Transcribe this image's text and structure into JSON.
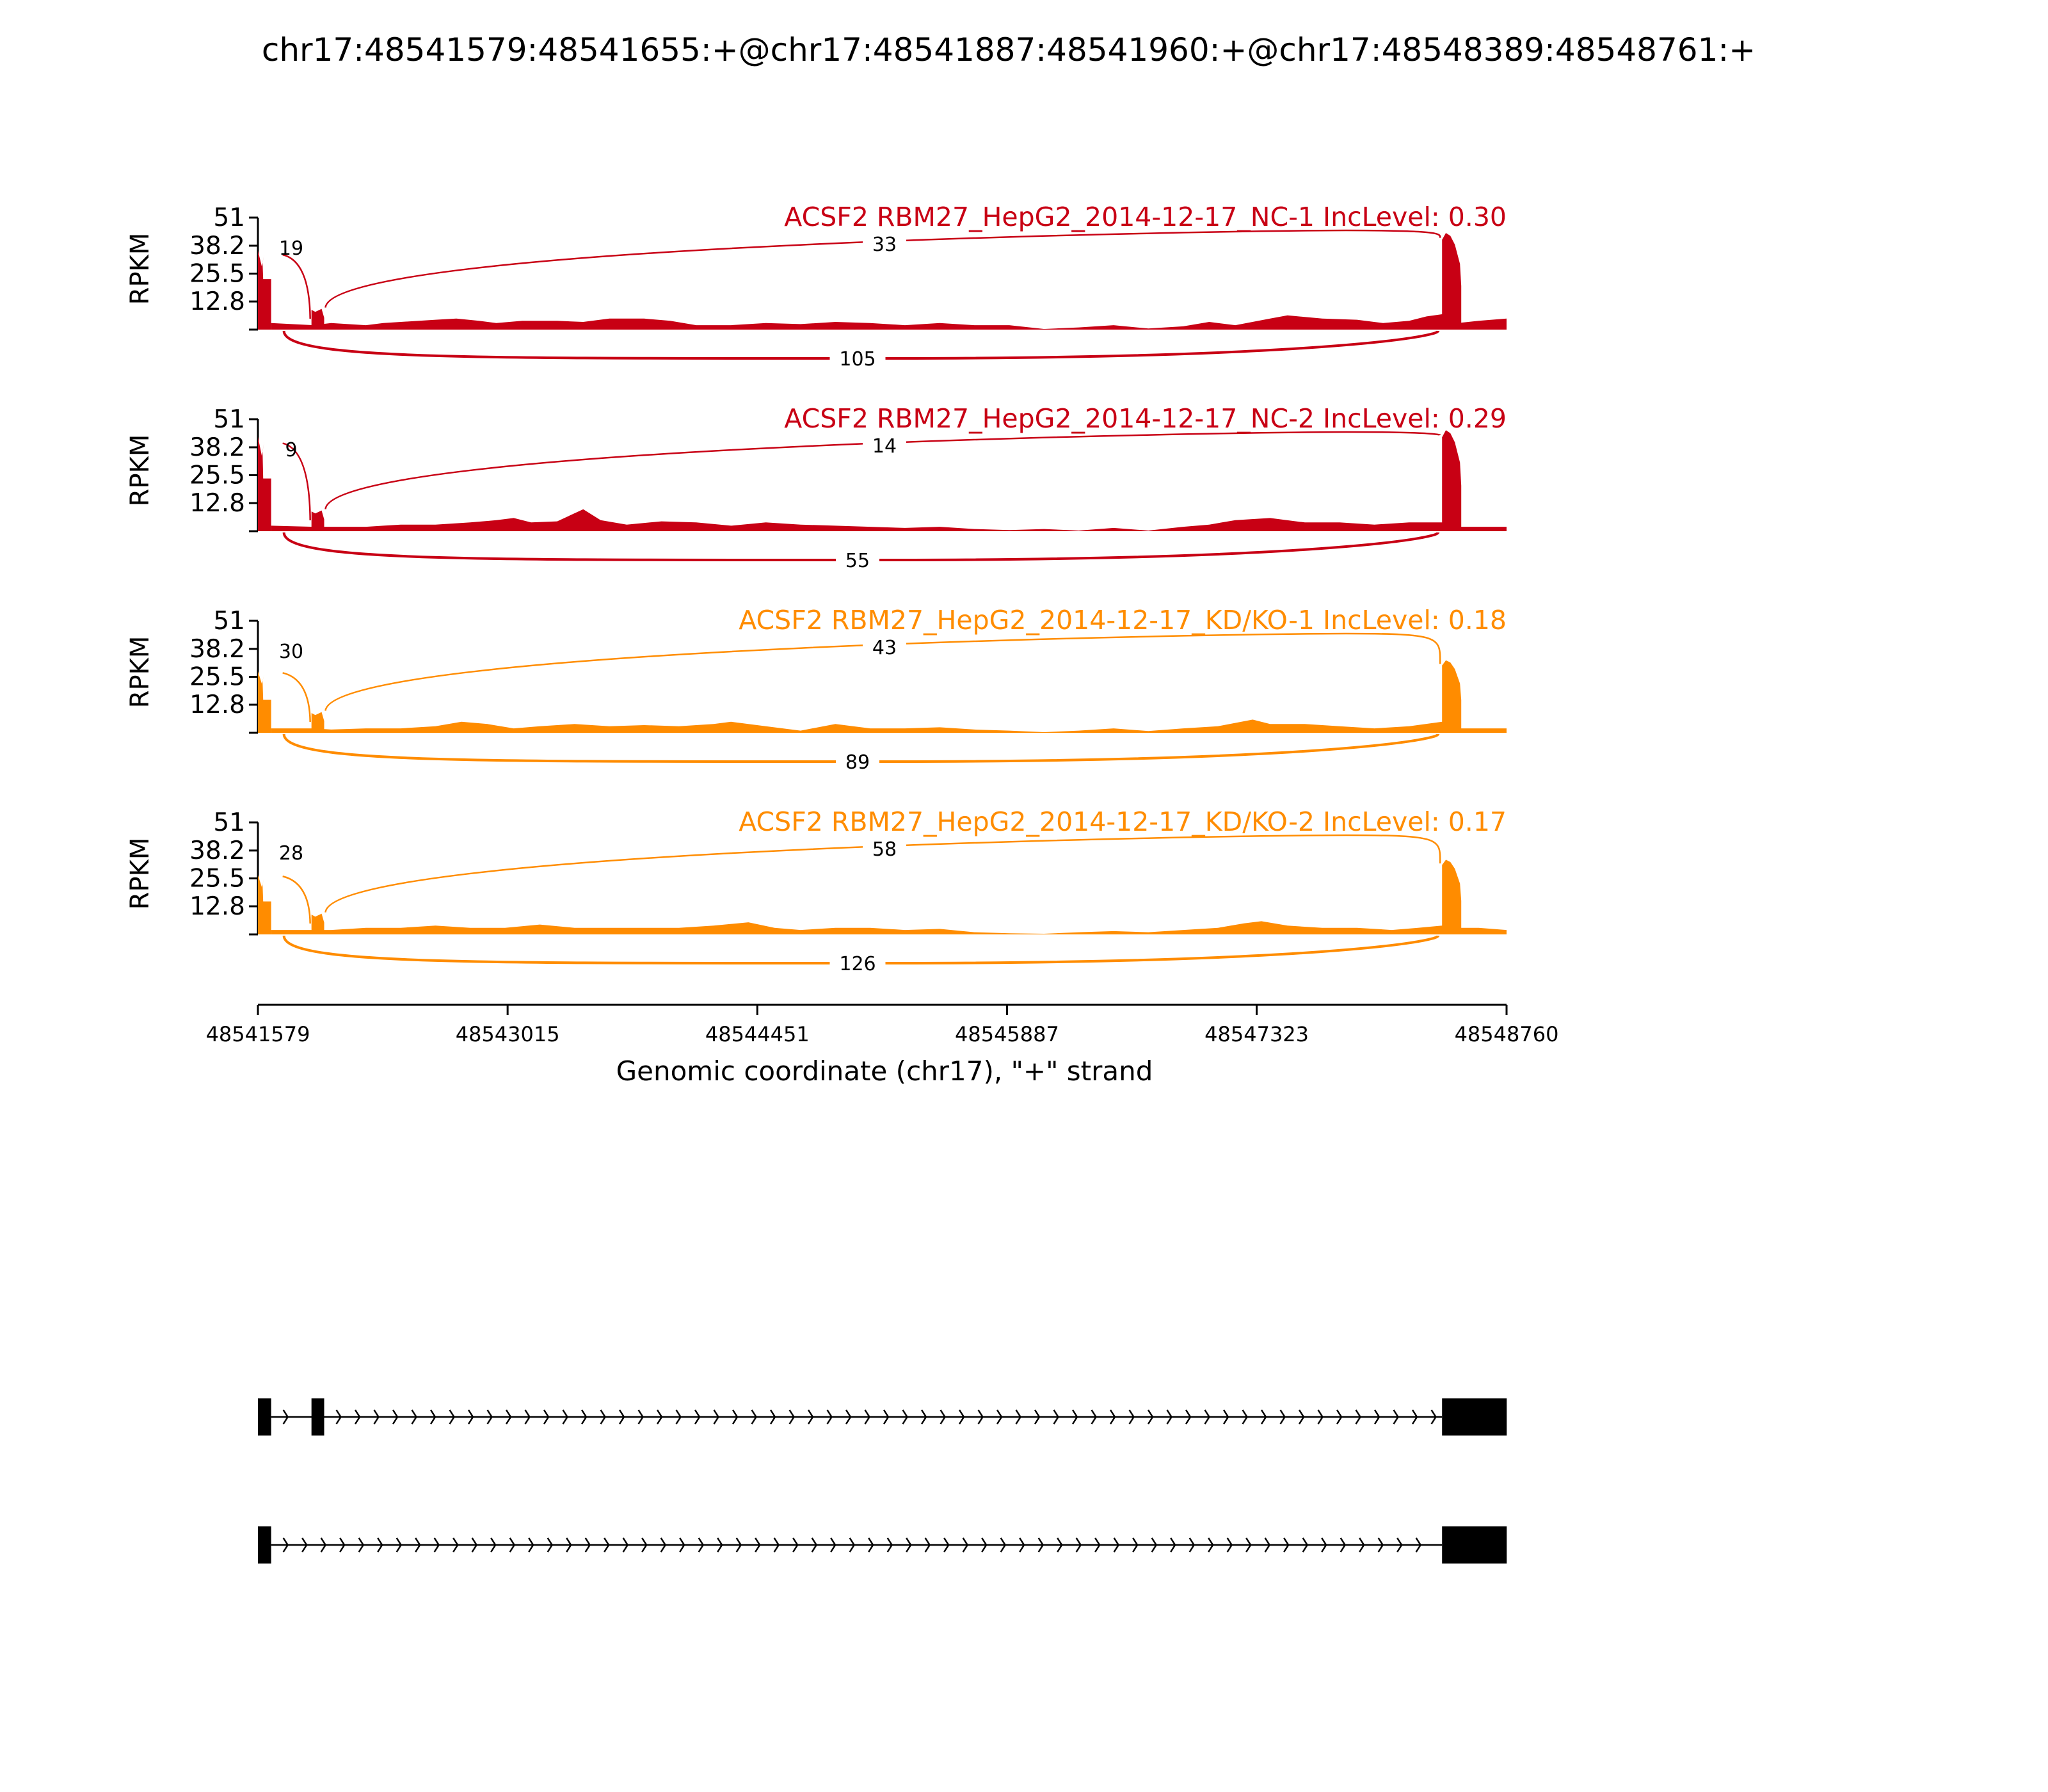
{
  "figure": {
    "title": "chr17:48541579:48541655:+@chr17:48541887:48541960:+@chr17:48548389:48548761:+",
    "xlabel": "Genomic coordinate (chr17), \"+\" strand",
    "ylabel": "RPKM"
  },
  "chart_data": {
    "type": "area",
    "title": "chr17:48541579:48541655:+@chr17:48541887:48541960:+@chr17:48548389:48548761:+",
    "xlabel": "Genomic coordinate (chr17), \"+\" strand",
    "ylabel": "RPKM",
    "xlim": [
      48541579,
      48548760
    ],
    "x_ticks": [
      "48541579",
      "48543015",
      "48544451",
      "48545887",
      "48547323",
      "48548760"
    ],
    "ylim": [
      0,
      51
    ],
    "y_ticks": [
      "12.8",
      "25.5",
      "38.2",
      "51"
    ],
    "exons": [
      {
        "start": 48541579,
        "end": 48541655
      },
      {
        "start": 48541887,
        "end": 48541960
      },
      {
        "start": 48548389,
        "end": 48548761
      }
    ],
    "series": [
      {
        "name": "ACSF2 RBM27_HepG2_2014-12-17_NC-1 IncLevel: 0.30",
        "color": "#c80014",
        "peaks": {
          "exon1": 36,
          "exon1_tail": 23,
          "exon2": 9,
          "exon3": 44
        },
        "background": [
          [
            48541655,
            3
          ],
          [
            48541900,
            2
          ],
          [
            48542000,
            3
          ],
          [
            48542200,
            2
          ],
          [
            48542300,
            3
          ],
          [
            48542400,
            3.5
          ],
          [
            48542600,
            4.5
          ],
          [
            48542720,
            5
          ],
          [
            48542850,
            4
          ],
          [
            48542950,
            3
          ],
          [
            48543100,
            4
          ],
          [
            48543300,
            4
          ],
          [
            48543450,
            3.5
          ],
          [
            48543600,
            5
          ],
          [
            48543800,
            5
          ],
          [
            48543950,
            4
          ],
          [
            48544100,
            2
          ],
          [
            48544300,
            2
          ],
          [
            48544500,
            3
          ],
          [
            48544700,
            2.5
          ],
          [
            48544900,
            3.5
          ],
          [
            48545100,
            3
          ],
          [
            48545300,
            2
          ],
          [
            48545500,
            3
          ],
          [
            48545700,
            2
          ],
          [
            48545900,
            2
          ],
          [
            48546100,
            0.3
          ],
          [
            48546300,
            1
          ],
          [
            48546500,
            2
          ],
          [
            48546700,
            0.5
          ],
          [
            48546900,
            1.5
          ],
          [
            48547050,
            3.5
          ],
          [
            48547200,
            2
          ],
          [
            48547400,
            5
          ],
          [
            48547500,
            6.5
          ],
          [
            48547700,
            5
          ],
          [
            48547900,
            4.5
          ],
          [
            48548050,
            3
          ],
          [
            48548200,
            4
          ],
          [
            48548300,
            6
          ],
          [
            48548389,
            7
          ],
          [
            48548480,
            3
          ],
          [
            48548600,
            4
          ],
          [
            48548760,
            5
          ]
        ],
        "junctions": [
          {
            "label": "19",
            "from": 48541655,
            "to": 48541887,
            "side": "above"
          },
          {
            "label": "33",
            "from": 48541960,
            "to": 48548389,
            "side": "above"
          },
          {
            "label": "105",
            "from": 48541655,
            "to": 48548389,
            "side": "below"
          }
        ]
      },
      {
        "name": "ACSF2 RBM27_HepG2_2014-12-17_NC-2 IncLevel: 0.29",
        "color": "#c80014",
        "peaks": {
          "exon1": 43,
          "exon1_tail": 24,
          "exon2": 9,
          "exon3": 46
        },
        "background": [
          [
            48541655,
            2.5
          ],
          [
            48541900,
            2
          ],
          [
            48542000,
            2
          ],
          [
            48542200,
            2
          ],
          [
            48542300,
            2.5
          ],
          [
            48542400,
            3
          ],
          [
            48542600,
            3
          ],
          [
            48542800,
            4
          ],
          [
            48542950,
            5
          ],
          [
            48543050,
            6
          ],
          [
            48543150,
            4
          ],
          [
            48543300,
            4.5
          ],
          [
            48543450,
            10
          ],
          [
            48543550,
            5
          ],
          [
            48543700,
            3
          ],
          [
            48543900,
            4.5
          ],
          [
            48544100,
            4
          ],
          [
            48544300,
            2.5
          ],
          [
            48544500,
            4
          ],
          [
            48544700,
            3
          ],
          [
            48544900,
            2.5
          ],
          [
            48545100,
            2
          ],
          [
            48545300,
            1.5
          ],
          [
            48545500,
            2
          ],
          [
            48545700,
            1
          ],
          [
            48545900,
            0.5
          ],
          [
            48546100,
            1
          ],
          [
            48546300,
            0.3
          ],
          [
            48546500,
            1.5
          ],
          [
            48546700,
            0.3
          ],
          [
            48546900,
            2
          ],
          [
            48547050,
            3
          ],
          [
            48547200,
            5
          ],
          [
            48547400,
            6
          ],
          [
            48547600,
            4
          ],
          [
            48547800,
            4
          ],
          [
            48548000,
            3
          ],
          [
            48548200,
            4
          ],
          [
            48548389,
            4
          ],
          [
            48548480,
            2
          ],
          [
            48548600,
            2
          ],
          [
            48548760,
            2
          ]
        ],
        "junctions": [
          {
            "label": "9",
            "from": 48541655,
            "to": 48541887,
            "side": "above"
          },
          {
            "label": "14",
            "from": 48541960,
            "to": 48548389,
            "side": "above"
          },
          {
            "label": "55",
            "from": 48541655,
            "to": 48548389,
            "side": "below"
          }
        ]
      },
      {
        "name": "ACSF2 RBM27_HepG2_2014-12-17_KD/KO-1 IncLevel: 0.18",
        "color": "#ff8c00",
        "peaks": {
          "exon1": 28,
          "exon1_tail": 15,
          "exon2": 9,
          "exon3": 33
        },
        "background": [
          [
            48541655,
            2
          ],
          [
            48541900,
            2
          ],
          [
            48542000,
            1.5
          ],
          [
            48542200,
            2
          ],
          [
            48542400,
            2
          ],
          [
            48542600,
            3
          ],
          [
            48542750,
            5
          ],
          [
            48542900,
            4
          ],
          [
            48543050,
            2
          ],
          [
            48543200,
            3
          ],
          [
            48543400,
            4
          ],
          [
            48543600,
            3
          ],
          [
            48543800,
            3.5
          ],
          [
            48544000,
            3
          ],
          [
            48544200,
            4
          ],
          [
            48544300,
            5
          ],
          [
            48544500,
            3
          ],
          [
            48544700,
            1
          ],
          [
            48544900,
            4
          ],
          [
            48545100,
            2
          ],
          [
            48545300,
            2
          ],
          [
            48545500,
            2.5
          ],
          [
            48545700,
            1.5
          ],
          [
            48545900,
            1
          ],
          [
            48546100,
            0.3
          ],
          [
            48546300,
            1
          ],
          [
            48546500,
            2
          ],
          [
            48546700,
            0.8
          ],
          [
            48546900,
            2
          ],
          [
            48547100,
            3
          ],
          [
            48547300,
            6
          ],
          [
            48547400,
            4
          ],
          [
            48547600,
            4
          ],
          [
            48547800,
            3
          ],
          [
            48548000,
            2
          ],
          [
            48548200,
            3
          ],
          [
            48548389,
            5
          ],
          [
            48548480,
            2
          ],
          [
            48548600,
            2
          ],
          [
            48548760,
            2
          ]
        ],
        "junctions": [
          {
            "label": "30",
            "from": 48541655,
            "to": 48541887,
            "side": "above"
          },
          {
            "label": "43",
            "from": 48541960,
            "to": 48548389,
            "side": "above"
          },
          {
            "label": "89",
            "from": 48541655,
            "to": 48548389,
            "side": "below"
          }
        ]
      },
      {
        "name": "ACSF2 RBM27_HepG2_2014-12-17_KD/KO-2 IncLevel: 0.17",
        "color": "#ff8c00",
        "peaks": {
          "exon1": 27,
          "exon1_tail": 15,
          "exon2": 9,
          "exon3": 34
        },
        "background": [
          [
            48541655,
            2
          ],
          [
            48541900,
            2
          ],
          [
            48542000,
            2
          ],
          [
            48542200,
            3
          ],
          [
            48542400,
            3
          ],
          [
            48542600,
            4
          ],
          [
            48542800,
            3
          ],
          [
            48543000,
            3
          ],
          [
            48543200,
            4.5
          ],
          [
            48543400,
            3
          ],
          [
            48543600,
            3
          ],
          [
            48543800,
            3
          ],
          [
            48544000,
            3
          ],
          [
            48544200,
            4
          ],
          [
            48544400,
            5.5
          ],
          [
            48544550,
            3
          ],
          [
            48544700,
            2
          ],
          [
            48544900,
            3
          ],
          [
            48545100,
            3
          ],
          [
            48545300,
            2
          ],
          [
            48545500,
            2.5
          ],
          [
            48545700,
            1
          ],
          [
            48545900,
            0.5
          ],
          [
            48546100,
            0.3
          ],
          [
            48546300,
            1
          ],
          [
            48546500,
            1.5
          ],
          [
            48546700,
            1
          ],
          [
            48546900,
            2
          ],
          [
            48547100,
            3
          ],
          [
            48547250,
            5
          ],
          [
            48547350,
            6
          ],
          [
            48547500,
            4
          ],
          [
            48547700,
            3
          ],
          [
            48547900,
            3
          ],
          [
            48548100,
            2
          ],
          [
            48548250,
            3
          ],
          [
            48548389,
            4
          ],
          [
            48548480,
            3
          ],
          [
            48548600,
            3
          ],
          [
            48548760,
            2
          ]
        ],
        "junctions": [
          {
            "label": "28",
            "from": 48541655,
            "to": 48541887,
            "side": "above"
          },
          {
            "label": "58",
            "from": 48541960,
            "to": 48548389,
            "side": "above"
          },
          {
            "label": "126",
            "from": 48541655,
            "to": 48548389,
            "side": "below"
          }
        ]
      }
    ],
    "isoforms": [
      {
        "exons": [
          [
            48541579,
            48541655
          ],
          [
            48541887,
            48541960
          ],
          [
            48548389,
            48548761
          ]
        ]
      },
      {
        "exons": [
          [
            48541579,
            48541655
          ],
          [
            48548389,
            48548761
          ]
        ]
      }
    ]
  }
}
